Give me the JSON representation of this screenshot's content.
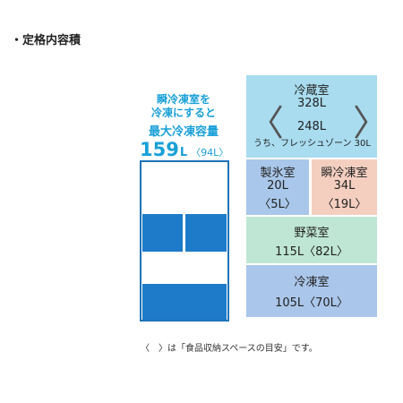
{
  "header": {
    "title": "・定格内容積"
  },
  "left": {
    "note_line1": "瞬冷凍室を",
    "note_line2": "冷凍にすると",
    "headline": "最大冷凍容量",
    "big": "159",
    "unit": "L",
    "sub": "〈94L〉"
  },
  "compartments": {
    "refrigerator": {
      "label": "冷蔵室",
      "total": "328L",
      "main": "248L",
      "detail": "うち、フレッシュゾーン 30L"
    },
    "ice": {
      "label": "製氷室",
      "amount": "20L",
      "sub": "〈5L〉"
    },
    "instant_freezer": {
      "label": "瞬冷凍室",
      "amount": "34L",
      "sub": "〈19L〉"
    },
    "vegetable": {
      "label": "野菜室",
      "amount": "115L〈82L〉"
    },
    "freezer": {
      "label": "冷凍室",
      "amount": "105L〈70L〉"
    }
  },
  "footer": {
    "note": "〈　〉は「食品収納スペースの目安」です。"
  },
  "colors": {
    "blue_accent": "#1aa0d8",
    "refrigerator": "#a9dcef",
    "ice": "#a9c7ea",
    "instant_freezer": "#f4cfc0",
    "vegetable": "#bfe6d4",
    "freezer": "#aac6ea",
    "diagram_blue": "#1e7bc9"
  }
}
